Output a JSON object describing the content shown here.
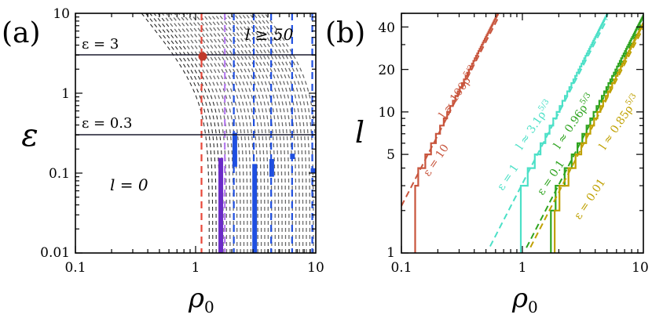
{
  "chart_data": [
    {
      "panel": "(a)",
      "type": "line",
      "xscale": "log",
      "yscale": "log",
      "xlim": [
        0.1,
        10
      ],
      "ylim": [
        0.01,
        10
      ],
      "xlabel": "ρ0",
      "ylabel": "ε",
      "xticks": [
        "0.1",
        "1",
        "10"
      ],
      "yticks": [
        "0.01",
        "0.1",
        "1",
        "10"
      ],
      "annotations": {
        "eps3": "ε = 3",
        "eps03": "ε = 0.3",
        "l50": "l ≥ 50",
        "l0": "l = 0"
      },
      "horizontal_lines": [
        3,
        0.3
      ],
      "contour_family": "l = const boundaries (dashed gray, l = 1 … 50)",
      "vertical_dashed_lines": [
        {
          "x": 1.12,
          "color": "#e8483a"
        },
        {
          "x": 1.75,
          "color": "#b77cf0"
        },
        {
          "x": 2.08,
          "color": "#1f4fe0"
        },
        {
          "x": 3.05,
          "color": "#1f4fe0"
        },
        {
          "x": 4.25,
          "color": "#1f4fe0"
        },
        {
          "x": 6.35,
          "color": "#1f4fe0"
        },
        {
          "x": 9.35,
          "color": "#1f4fe0"
        }
      ],
      "segments": [
        {
          "x": 1.62,
          "y": [
            0.01,
            0.155
          ],
          "color": "#6b2bc8"
        },
        {
          "x": 2.12,
          "y": [
            0.12,
            0.32
          ],
          "color": "#1f4fe0"
        },
        {
          "x": 3.1,
          "y": [
            0.01,
            0.13
          ],
          "color": "#1f4fe0"
        },
        {
          "x": 4.3,
          "y": [
            0.09,
            0.15
          ],
          "color": "#1f4fe0"
        },
        {
          "x": 6.4,
          "y": [
            0.15,
            0.175
          ],
          "color": "#1f4fe0"
        },
        {
          "x": 9.5,
          "y": [
            0.1,
            0.115
          ],
          "color": "#1f4fe0"
        }
      ],
      "points": [
        {
          "x": 1.12,
          "y": 2.8,
          "color": "#c0392b"
        }
      ]
    },
    {
      "panel": "(b)",
      "type": "line",
      "xscale": "log",
      "yscale": "log",
      "xlim": [
        0.1,
        10
      ],
      "ylim": [
        1,
        50
      ],
      "xlabel": "ρ0",
      "ylabel": "l",
      "xticks": [
        "0.1",
        "1",
        "10"
      ],
      "yticks": [
        "1",
        "5",
        "10",
        "20",
        "40"
      ],
      "series": [
        {
          "name": "ε = 10",
          "fit": "l ≈ 100ρ0^{5/3}",
          "prefactor": 100,
          "color": "#c8553d",
          "onset": 0.13
        },
        {
          "name": "ε = 1",
          "fit": "l ≈ 3.1ρ0^{5/3}",
          "prefactor": 3.1,
          "color": "#4ce0c7",
          "onset": 0.97
        },
        {
          "name": "ε = 0.1",
          "fit": "l ≈ 0.96ρ0^{5/3}",
          "prefactor": 0.96,
          "color": "#2ea41f",
          "onset": 1.72
        },
        {
          "name": "ε = 0.01",
          "fit": "l ≈ 0.85ρ0^{5/3}",
          "prefactor": 0.85,
          "color": "#bfa000",
          "onset": 1.85
        }
      ],
      "exponent": 1.6667
    }
  ],
  "labels": {
    "panel_a": "(a)",
    "panel_b": "(b)",
    "rho": "ρ",
    "rho_sub": "0",
    "eps_axis": "ε",
    "l_axis": "l",
    "a_y": [
      "10",
      "1",
      "0.1",
      "0.01"
    ],
    "a_x": [
      "0.1",
      "1",
      "10"
    ],
    "b_y": [
      "40",
      "20",
      "10",
      "5",
      "1"
    ],
    "b_x": [
      "0.1",
      "1",
      "10"
    ],
    "eps3": "ε = 3",
    "eps03": "ε = 0.3",
    "l50": "l ≥ 50",
    "l0": "l = 0",
    "b_series": [
      {
        "eps": "ε = 10",
        "fit": "l ≈ 100ρ",
        "pow": "5/3",
        "color": "#c8553d"
      },
      {
        "eps": "ε = 1",
        "fit": "l ≈ 3.1ρ",
        "pow": "5/3",
        "color": "#4ce0c7"
      },
      {
        "eps": "ε = 0.1",
        "fit": "l ≈ 0.96ρ",
        "pow": "5/3",
        "color": "#2ea41f"
      },
      {
        "eps": "ε = 0.01",
        "fit": "l ≈ 0.85ρ",
        "pow": "5/3",
        "color": "#bfa000"
      }
    ]
  }
}
